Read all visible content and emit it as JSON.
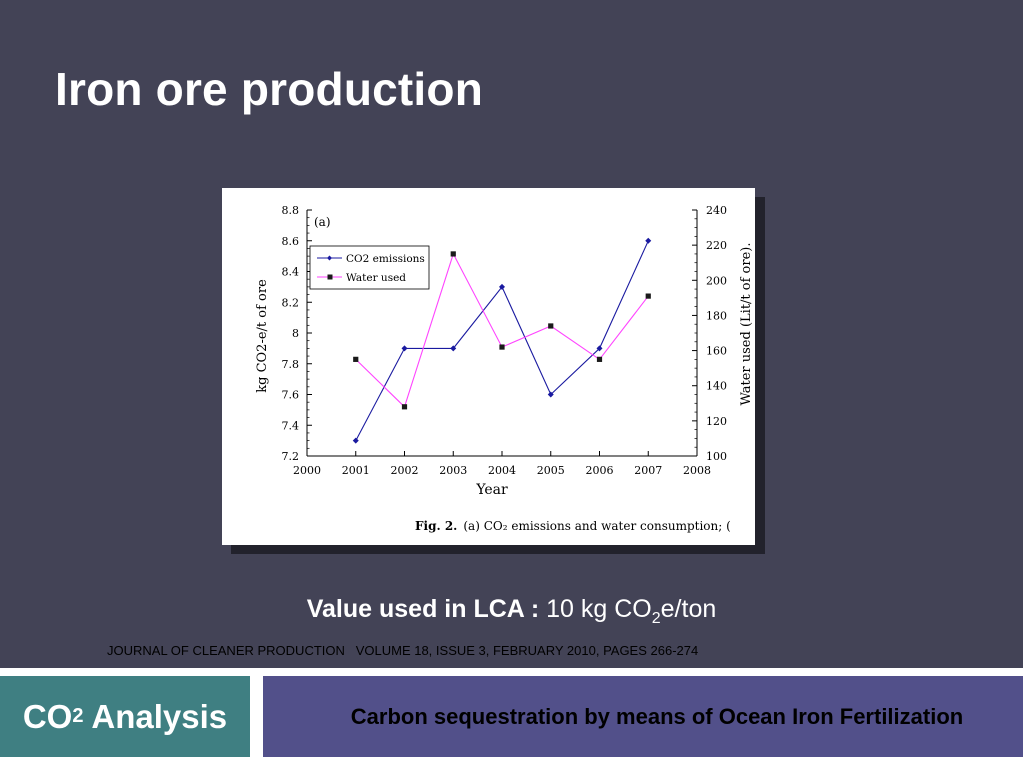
{
  "slide": {
    "title": "Iron ore production",
    "lca_label": "Value used in LCA :",
    "lca_value_prefix": "10 kg CO",
    "lca_value_sub": "2",
    "lca_value_suffix": "e/ton",
    "journal_ref": "JOURNAL OF CLEANER PRODUCTION   VOLUME 18, ISSUE 3, FEBRUARY 2010, PAGES 266-274",
    "footer_left_prefix": "CO",
    "footer_left_sub": "2",
    "footer_left_suffix": " Analysis",
    "footer_right": "Carbon sequestration by means of Ocean Iron Fertilization",
    "colors": {
      "background": "#434356",
      "footer_left": "#3f7f82",
      "footer_right": "#52508a"
    }
  },
  "chart_data": {
    "type": "line",
    "panel_label": "(a)",
    "xlabel": "Year",
    "ylabel": "kg CO2-e/t of ore",
    "y2label": "Water used (Lit/t of ore).",
    "xlim": [
      2000,
      2008
    ],
    "ylim": [
      7.2,
      8.8
    ],
    "y2lim": [
      100,
      240
    ],
    "x_ticks": [
      "2000",
      "2001",
      "2002",
      "2003",
      "2004",
      "2005",
      "2006",
      "2007",
      "2008"
    ],
    "y_ticks": [
      "7.2",
      "7.4",
      "7.6",
      "7.8",
      "8",
      "8.2",
      "8.4",
      "8.6",
      "8.8"
    ],
    "y2_ticks": [
      "100",
      "120",
      "140",
      "160",
      "180",
      "200",
      "220",
      "240"
    ],
    "caption_prefix": "Fig. 2.",
    "caption_text": "(a) CO₂ emissions and water consumption; (",
    "legend_position": "top-left",
    "series": [
      {
        "name": "CO2 emissions",
        "axis": "left",
        "color": "#1a1aa0",
        "marker": "diamond",
        "x": [
          2001,
          2002,
          2003,
          2004,
          2005,
          2006,
          2007
        ],
        "values": [
          7.3,
          7.9,
          7.9,
          8.3,
          7.6,
          7.9,
          8.6
        ]
      },
      {
        "name": "Water used",
        "axis": "right",
        "color": "#ff44ff",
        "marker": "square",
        "x": [
          2001,
          2002,
          2003,
          2004,
          2005,
          2006,
          2007
        ],
        "values": [
          155,
          128,
          215,
          162,
          174,
          155,
          191
        ]
      }
    ]
  }
}
